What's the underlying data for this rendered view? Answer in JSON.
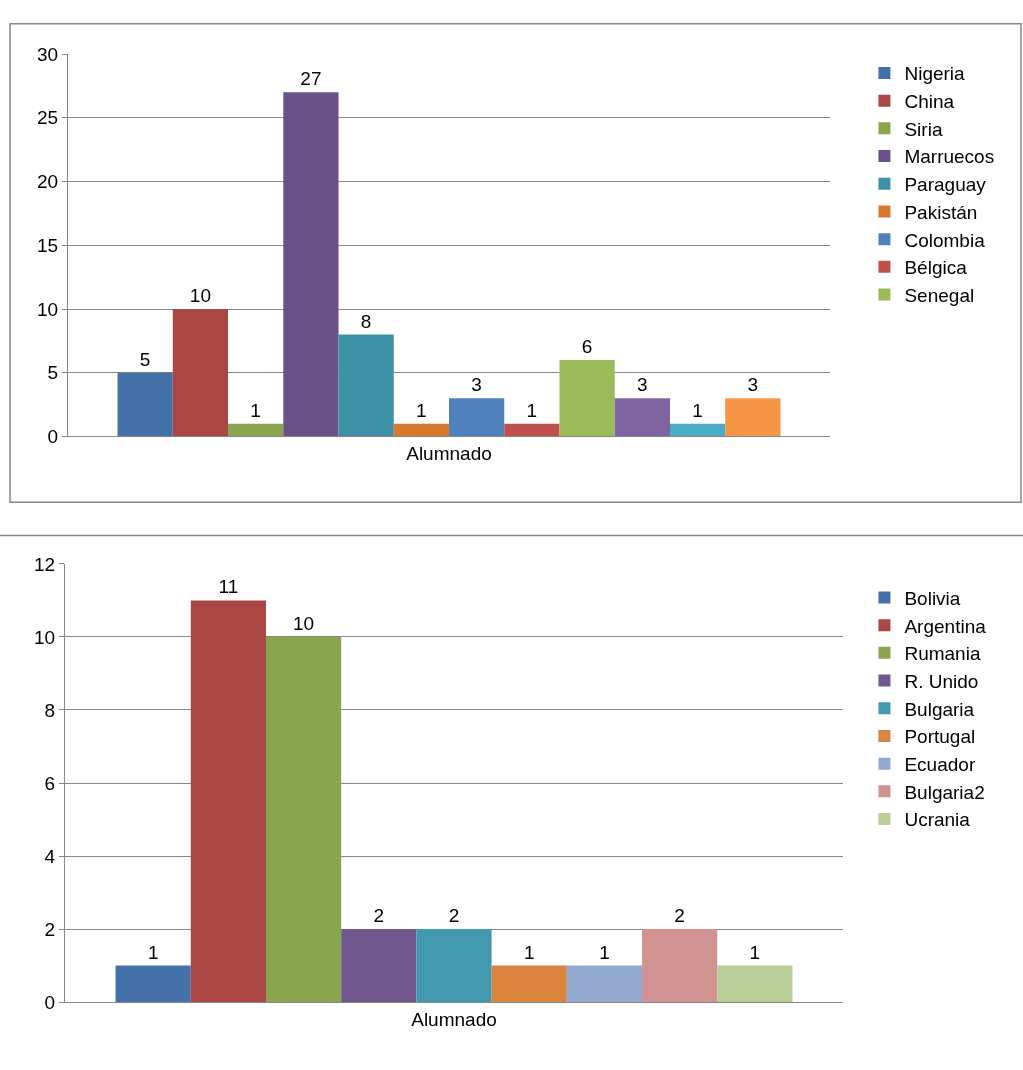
{
  "chart_data": [
    {
      "type": "bar",
      "categories": [
        "Alumnado"
      ],
      "ylim": [
        0,
        30
      ],
      "yticks": [
        0,
        5,
        10,
        15,
        20,
        25,
        30
      ],
      "grid": "y",
      "legend": "right",
      "data_labels": true,
      "series": [
        {
          "name": "Nigeria",
          "color": "#4470a8",
          "values": [
            5
          ]
        },
        {
          "name": "China",
          "color": "#aa4744",
          "values": [
            10
          ]
        },
        {
          "name": "Siria",
          "color": "#89a54e",
          "values": [
            1
          ]
        },
        {
          "name": "Marruecos",
          "color": "#6b5189",
          "values": [
            27
          ]
        },
        {
          "name": "Paraguay",
          "color": "#3d90a6",
          "values": [
            8
          ]
        },
        {
          "name": "Pakistán",
          "color": "#d9792f",
          "values": [
            1
          ]
        },
        {
          "name": "Colombia",
          "color": "#4f81bd",
          "values": [
            3
          ]
        },
        {
          "name": "Bélgica",
          "color": "#c0504d",
          "values": [
            1
          ]
        },
        {
          "name": "Senegal",
          "color": "#9bbb59",
          "values": [
            6
          ]
        },
        {
          "color": "#8064a2",
          "values": [
            3
          ]
        },
        {
          "color": "#4bacc6",
          "values": [
            1
          ]
        },
        {
          "color": "#f79646",
          "values": [
            3
          ]
        }
      ]
    },
    {
      "type": "bar",
      "categories": [
        "Alumnado"
      ],
      "ylim": [
        0,
        12
      ],
      "yticks": [
        0,
        2,
        4,
        6,
        8,
        10,
        12
      ],
      "grid": "y",
      "legend": "right",
      "data_labels": true,
      "series": [
        {
          "name": "Bolivia",
          "color": "#4470a8",
          "values": [
            1
          ]
        },
        {
          "name": "Argentina",
          "color": "#aa4744",
          "values": [
            11
          ]
        },
        {
          "name": "Rumania",
          "color": "#89a54e",
          "values": [
            10
          ]
        },
        {
          "name": "R. Unido",
          "color": "#71588f",
          "values": [
            2
          ]
        },
        {
          "name": "Bulgaria",
          "color": "#4198af",
          "values": [
            2
          ]
        },
        {
          "name": "Portugal",
          "color": "#db843d",
          "values": [
            1
          ]
        },
        {
          "name": "Ecuador",
          "color": "#93a9cf",
          "values": [
            1
          ]
        },
        {
          "name": "Bulgaria2",
          "color": "#d19392",
          "values": [
            2
          ]
        },
        {
          "name": "Ucrania",
          "color": "#b9cd96",
          "values": [
            1
          ]
        }
      ]
    }
  ]
}
